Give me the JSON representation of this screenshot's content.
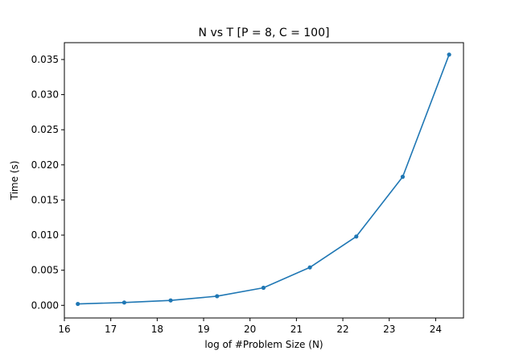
{
  "chart_data": {
    "type": "line",
    "title": "N vs T [P = 8, C = 100]",
    "xlabel": "log of #Problem Size (N)",
    "ylabel": "Time (s)",
    "xlim": [
      16.0,
      24.6
    ],
    "ylim": [
      -0.0018,
      0.0374
    ],
    "grid": false,
    "x_ticks": [
      16,
      17,
      18,
      19,
      20,
      21,
      22,
      23,
      24
    ],
    "x_tick_labels": [
      "16",
      "17",
      "18",
      "19",
      "20",
      "21",
      "22",
      "23",
      "24"
    ],
    "y_ticks": [
      0.0,
      0.005,
      0.01,
      0.015,
      0.02,
      0.025,
      0.03,
      0.035
    ],
    "y_tick_labels": [
      "0.000",
      "0.005",
      "0.010",
      "0.015",
      "0.020",
      "0.025",
      "0.030",
      "0.035"
    ],
    "series": [
      {
        "color": "#1f77b4",
        "marker": "circle",
        "x": [
          16.29,
          17.29,
          18.29,
          19.29,
          20.29,
          21.29,
          22.29,
          23.29,
          24.29
        ],
        "y": [
          0.0002,
          0.0004,
          0.0007,
          0.0013,
          0.0025,
          0.0054,
          0.0098,
          0.0183,
          0.0357
        ]
      }
    ]
  }
}
